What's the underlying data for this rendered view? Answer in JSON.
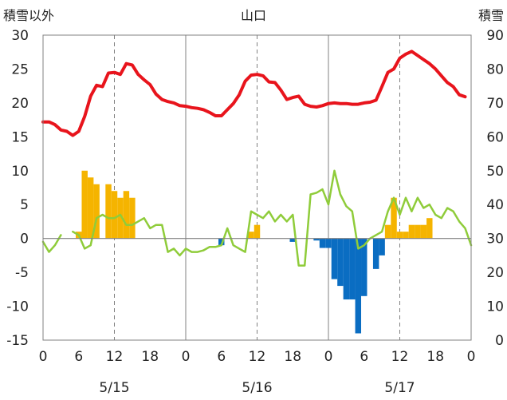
{
  "chart_data": {
    "type": "combo",
    "title": "山口",
    "left_axis_label": "積雪以外",
    "right_axis_label": "積雪",
    "left_ylim": [
      -15,
      30
    ],
    "left_ticks": [
      30,
      25,
      20,
      15,
      10,
      5,
      0,
      -5,
      -10,
      -15
    ],
    "right_ylim": [
      0,
      90
    ],
    "right_ticks": [
      90,
      80,
      70,
      60,
      50,
      40,
      30,
      20,
      10,
      0
    ],
    "x_range": [
      0,
      72
    ],
    "x_ticks": [
      {
        "x": 0,
        "label": "0"
      },
      {
        "x": 6,
        "label": "6"
      },
      {
        "x": 12,
        "label": "12"
      },
      {
        "x": 18,
        "label": "18"
      },
      {
        "x": 24,
        "label": "0"
      },
      {
        "x": 30,
        "label": "6"
      },
      {
        "x": 36,
        "label": "12"
      },
      {
        "x": 42,
        "label": "18"
      },
      {
        "x": 48,
        "label": "0"
      },
      {
        "x": 54,
        "label": "6"
      },
      {
        "x": 60,
        "label": "12"
      },
      {
        "x": 66,
        "label": "18"
      },
      {
        "x": 72,
        "label": "0"
      }
    ],
    "dates": [
      {
        "x": 12,
        "label": "5/15"
      },
      {
        "x": 36,
        "label": "5/16"
      },
      {
        "x": 60,
        "label": "5/17"
      }
    ],
    "grid": {
      "solid_x": [
        24,
        48
      ],
      "dashed_x": [
        12,
        36,
        60
      ],
      "zero_line": true
    },
    "colors": {
      "temperature": "#e8141c",
      "precipitation": "#f5b400",
      "diff": "#0a6dc2",
      "snow": "#8fcc3a",
      "axis": "#808080"
    },
    "series": [
      {
        "kind": "line",
        "axis": "left",
        "color": "#e8141c",
        "x": [
          0,
          1,
          2,
          3,
          4,
          5,
          6,
          7,
          8,
          9,
          10,
          11,
          12,
          13,
          14,
          15,
          16,
          17,
          18,
          19,
          20,
          21,
          22,
          23,
          24,
          25,
          26,
          27,
          28,
          29,
          30,
          31,
          32,
          33,
          34,
          35,
          36,
          37,
          38,
          39,
          40,
          41,
          42,
          43,
          44,
          45,
          46,
          47,
          48,
          49,
          50,
          51,
          52,
          53,
          54,
          55,
          56,
          57,
          58,
          59,
          60,
          61,
          62,
          63,
          64,
          65,
          66,
          67,
          68,
          69,
          70,
          71
        ],
        "values": [
          17.2,
          17.2,
          16.8,
          16.0,
          15.8,
          15.2,
          15.8,
          18.0,
          21.0,
          22.6,
          22.4,
          24.4,
          24.5,
          24.2,
          25.8,
          25.6,
          24.2,
          23.4,
          22.7,
          21.3,
          20.5,
          20.2,
          20.0,
          19.6,
          19.5,
          19.3,
          19.2,
          19.0,
          18.6,
          18.1,
          18.1,
          19.0,
          19.9,
          21.2,
          23.2,
          24.1,
          24.2,
          24.0,
          23.1,
          23.0,
          21.9,
          20.5,
          20.8,
          21.0,
          19.8,
          19.5,
          19.4,
          19.6,
          19.9,
          20.0,
          19.9,
          19.9,
          19.8,
          19.8,
          20.0,
          20.1,
          20.4,
          22.4,
          24.5,
          25.0,
          26.6,
          27.2,
          27.6,
          27.0,
          26.4,
          25.8,
          25.0,
          24.0,
          23.0,
          22.4,
          21.2,
          20.9
        ]
      },
      {
        "kind": "bar",
        "axis": "left",
        "color": "#f5b400",
        "points": [
          [
            6,
            1
          ],
          [
            7,
            10
          ],
          [
            8,
            9
          ],
          [
            9,
            8
          ],
          [
            11,
            8
          ],
          [
            12,
            7
          ],
          [
            13,
            6
          ],
          [
            14,
            7
          ],
          [
            15,
            6
          ],
          [
            35,
            1
          ],
          [
            36,
            2
          ],
          [
            58,
            2
          ],
          [
            59,
            6
          ],
          [
            60,
            1
          ],
          [
            61,
            1
          ],
          [
            62,
            2
          ],
          [
            63,
            2
          ],
          [
            64,
            2
          ],
          [
            65,
            3
          ]
        ]
      },
      {
        "kind": "bar",
        "axis": "left",
        "color": "#0a6dc2",
        "points": [
          [
            30,
            -1
          ],
          [
            42,
            -0.5
          ],
          [
            46,
            -0.3
          ],
          [
            47,
            -1.4
          ],
          [
            48,
            -1.4
          ],
          [
            49,
            -6
          ],
          [
            50,
            -7
          ],
          [
            51,
            -9
          ],
          [
            52,
            -9
          ],
          [
            53,
            -14
          ],
          [
            54,
            -8.5
          ],
          [
            56,
            -4.5
          ],
          [
            57,
            -2.5
          ]
        ]
      },
      {
        "kind": "line",
        "axis": "right",
        "color": "#8fcc3a",
        "segmented": true,
        "segments": [
          {
            "x": [
              0,
              1,
              2,
              3
            ],
            "values": [
              29,
              26,
              28,
              31
            ]
          },
          {
            "x": [
              5,
              6,
              7,
              8,
              9,
              10,
              11,
              12,
              13,
              14,
              15,
              16,
              17,
              18,
              19,
              20,
              21,
              22,
              23,
              24,
              25,
              26,
              27,
              28,
              29,
              30,
              31,
              32,
              33,
              34,
              35,
              36,
              37,
              38,
              39,
              40,
              41,
              42,
              43,
              44,
              45,
              46,
              47,
              48,
              49,
              50,
              51,
              52,
              53,
              54,
              55,
              56,
              57,
              58,
              59,
              60,
              61,
              62,
              63,
              64,
              65,
              66,
              67,
              68,
              69,
              70,
              71,
              72
            ],
            "values": [
              32,
              31,
              27,
              28,
              36,
              37,
              36,
              36,
              37,
              34,
              34,
              35,
              36,
              33,
              34,
              34,
              26,
              27,
              25,
              27,
              26,
              26,
              26.5,
              27.5,
              27.5,
              28,
              33,
              28,
              27,
              26,
              38,
              37,
              36,
              38,
              35,
              37,
              35,
              37,
              22,
              22,
              43,
              43.5,
              44.5,
              40,
              50,
              43,
              39.5,
              38,
              27,
              28,
              30,
              31,
              32,
              38,
              42,
              37,
              42,
              38,
              42,
              39,
              40,
              37,
              36,
              39,
              38,
              35,
              33,
              28
            ]
          }
        ]
      }
    ]
  }
}
